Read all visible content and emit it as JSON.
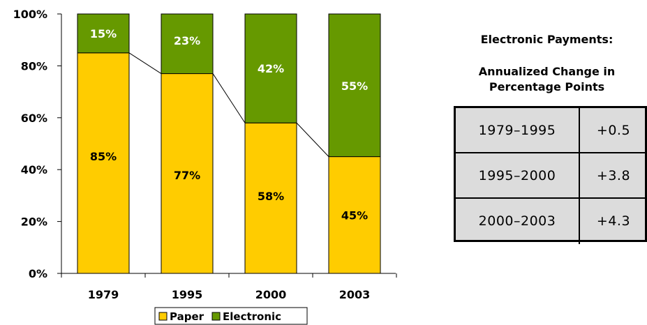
{
  "chart_data": {
    "type": "bar",
    "stacked": true,
    "categories": [
      "1979",
      "1995",
      "2000",
      "2003"
    ],
    "series": [
      {
        "name": "Paper",
        "values": [
          85,
          77,
          58,
          45
        ],
        "labels": [
          "85%",
          "77%",
          "58%",
          "45%"
        ],
        "color": "#FFCC00"
      },
      {
        "name": "Electronic",
        "values": [
          15,
          23,
          42,
          55
        ],
        "labels": [
          "15%",
          "23%",
          "42%",
          "55%"
        ],
        "color": "#669900"
      }
    ],
    "ylim": [
      0,
      100
    ],
    "yticks": [
      0,
      20,
      40,
      60,
      80,
      100
    ],
    "ytick_labels": [
      "0%",
      "20%",
      "40%",
      "60%",
      "80%",
      "100%"
    ],
    "series_lines": true,
    "grid": false,
    "legend": "bottom"
  },
  "side_panel": {
    "title_line1": "Electronic Payments:",
    "title_line2": "Annualized Change in Percentage Points",
    "rows": [
      {
        "period": "1979–1995",
        "value": "+0.5"
      },
      {
        "period": "1995–2000",
        "value": "+3.8"
      },
      {
        "period": "2000–2003",
        "value": "+4.3"
      }
    ]
  }
}
